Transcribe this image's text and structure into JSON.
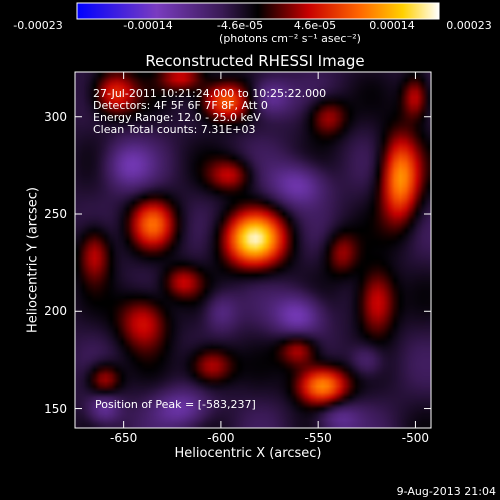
{
  "colorbar": {
    "ticks": [
      "-0.00023",
      "-0.00014",
      "-4.6e-05",
      "4.6e-05",
      "0.00014",
      "0.00023"
    ],
    "units": "(photons cm⁻² s⁻¹ asec⁻²)",
    "range": [
      -0.00023,
      0.00023
    ]
  },
  "info_lines": [
    "27-Jul-2011 10:21:24.000 to 10:25:22.000",
    "Detectors: 4F 5F 6F 7F 8F, Att 0",
    "Energy Range: 12.0 - 25.0 keV",
    "Clean     Total counts: 7.31E+03"
  ],
  "peak_label": "Position of Peak = [-583,237]",
  "footer": "9-Aug-2013 21:04",
  "chart_data": {
    "type": "heatmap",
    "title": "Reconstructed RHESSI Image",
    "xlabel": "Heliocentric X (arcsec)",
    "ylabel": "Heliocentric Y (arcsec)",
    "xlim": [
      -675,
      -492
    ],
    "ylim": [
      140,
      323
    ],
    "xticks": [
      -650,
      -600,
      -550,
      -500
    ],
    "yticks": [
      150,
      200,
      250,
      300
    ],
    "xtick_labels": [
      "-650",
      "-600",
      "-550",
      "-500"
    ],
    "ytick_labels": [
      "150",
      "200",
      "250",
      "300"
    ],
    "peak_position": [
      -583,
      237
    ],
    "colormap": "rainbow-heat (blue-purple-black-red-orange-yellow-white)",
    "sources": [
      {
        "x": -583,
        "y": 237,
        "v": 0.00023,
        "sx": 11,
        "sy": 10
      },
      {
        "x": -598,
        "y": 308,
        "v": 0.00016,
        "sx": 9,
        "sy": 7
      },
      {
        "x": -655,
        "y": 312,
        "v": 0.00013,
        "sx": 8,
        "sy": 8
      },
      {
        "x": -508,
        "y": 268,
        "v": 0.00018,
        "sx": 7,
        "sy": 16
      },
      {
        "x": -520,
        "y": 205,
        "v": 0.00012,
        "sx": 7,
        "sy": 12
      },
      {
        "x": -548,
        "y": 162,
        "v": 0.00019,
        "sx": 9,
        "sy": 7
      },
      {
        "x": -560,
        "y": 180,
        "v": 0.0001,
        "sx": 7,
        "sy": 6
      },
      {
        "x": -635,
        "y": 245,
        "v": 0.00014,
        "sx": 8,
        "sy": 9
      },
      {
        "x": -640,
        "y": 195,
        "v": 0.00011,
        "sx": 9,
        "sy": 10
      },
      {
        "x": -665,
        "y": 230,
        "v": 0.0001,
        "sx": 6,
        "sy": 10
      },
      {
        "x": -605,
        "y": 172,
        "v": 0.00011,
        "sx": 8,
        "sy": 7
      },
      {
        "x": -595,
        "y": 270,
        "v": 9e-05,
        "sx": 8,
        "sy": 6
      },
      {
        "x": -545,
        "y": 300,
        "v": 9e-05,
        "sx": 7,
        "sy": 7
      },
      {
        "x": -660,
        "y": 165,
        "v": 0.0001,
        "sx": 6,
        "sy": 6
      },
      {
        "x": -620,
        "y": 215,
        "v": 9e-05,
        "sx": 7,
        "sy": 6
      },
      {
        "x": -538,
        "y": 230,
        "v": 8e-05,
        "sx": 6,
        "sy": 8
      },
      {
        "x": -620,
        "y": 320,
        "v": 0.0001,
        "sx": 8,
        "sy": 5
      },
      {
        "x": -500,
        "y": 310,
        "v": 0.00011,
        "sx": 5,
        "sy": 8
      },
      {
        "x": -560,
        "y": 265,
        "v": -9e-05,
        "sx": 10,
        "sy": 8
      },
      {
        "x": -648,
        "y": 275,
        "v": -8e-05,
        "sx": 9,
        "sy": 9
      },
      {
        "x": -560,
        "y": 198,
        "v": -0.0001,
        "sx": 9,
        "sy": 8
      },
      {
        "x": -620,
        "y": 150,
        "v": -8e-05,
        "sx": 10,
        "sy": 7
      },
      {
        "x": -540,
        "y": 145,
        "v": -7e-05,
        "sx": 8,
        "sy": 6
      },
      {
        "x": -575,
        "y": 310,
        "v": -9e-05,
        "sx": 8,
        "sy": 7
      },
      {
        "x": -660,
        "y": 150,
        "v": -8e-05,
        "sx": 6,
        "sy": 6
      },
      {
        "x": -525,
        "y": 175,
        "v": -6e-05,
        "sx": 6,
        "sy": 6
      },
      {
        "x": -600,
        "y": 200,
        "v": -6e-05,
        "sx": 6,
        "sy": 7
      }
    ]
  }
}
